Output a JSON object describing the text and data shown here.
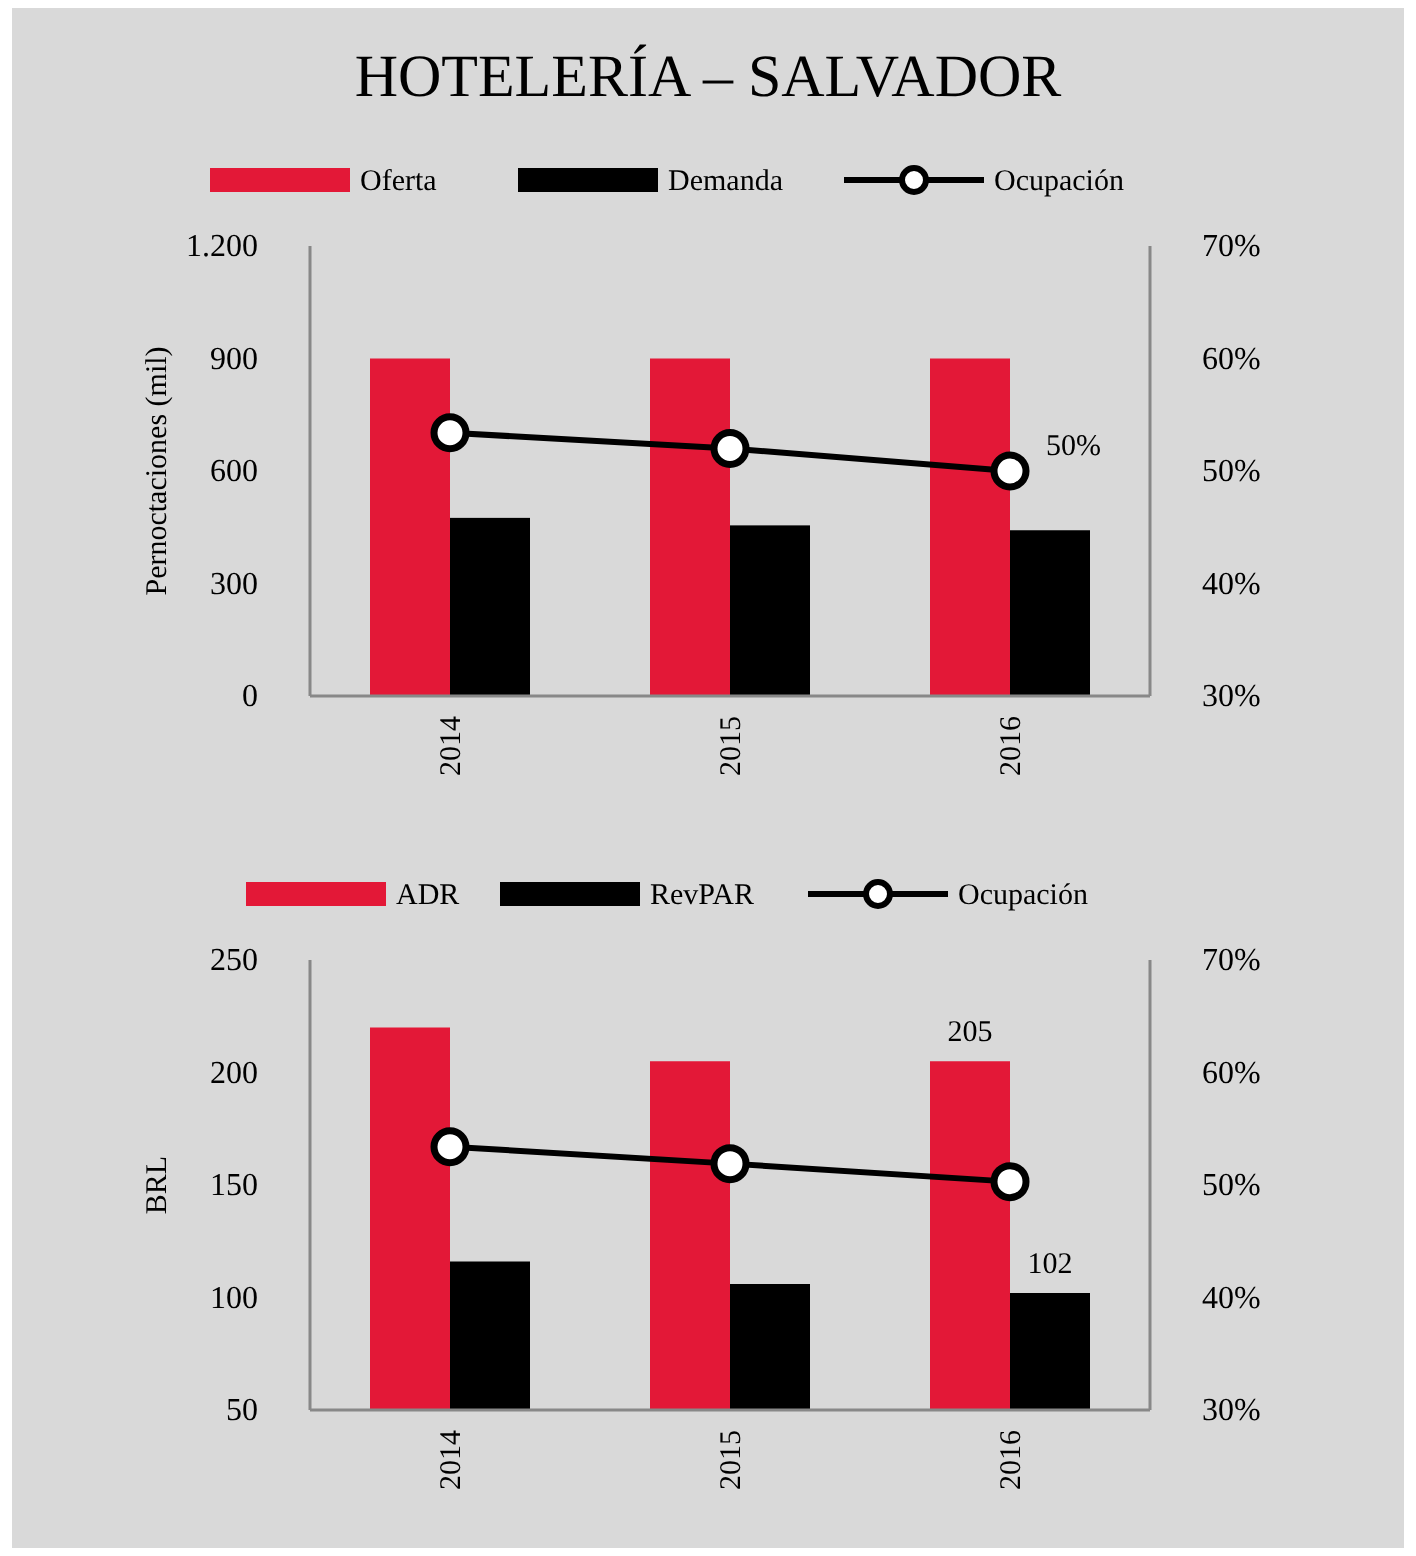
{
  "chart_data": [
    {
      "type": "bar",
      "title": "HOTELERÍA – SALVADOR",
      "categories": [
        "2014",
        "2015",
        "2016"
      ],
      "ylabel": "Pernoctaciones  (mil)",
      "legend": "top",
      "grid": false,
      "marker": "circle",
      "ylim": [
        0,
        1200
      ],
      "yticks": [
        0,
        300,
        600,
        900,
        {
          "value": 1200,
          "label": "1.200"
        }
      ],
      "y2lim": [
        30,
        70
      ],
      "y2ticks": [
        {
          "value": 30,
          "label": "30%"
        },
        {
          "value": 40,
          "label": "40%"
        },
        {
          "value": 50,
          "label": "50%"
        },
        {
          "value": 60,
          "label": "60%"
        },
        {
          "value": 70,
          "label": "70%"
        }
      ],
      "series": [
        {
          "name": "Oferta",
          "color": "#e31837",
          "values": [
            900,
            900,
            900
          ]
        },
        {
          "name": "Demanda",
          "color": "#000000",
          "values": [
            475,
            455,
            442
          ]
        },
        {
          "name": "Ocupación",
          "type": "line",
          "axis": "y2",
          "color": "#000000",
          "values": [
            53.4,
            52.0,
            50
          ],
          "value_labels": [
            null,
            null,
            "50%"
          ]
        }
      ]
    },
    {
      "type": "bar",
      "categories": [
        "2014",
        "2015",
        "2016"
      ],
      "ylabel": "BRL",
      "legend": "top",
      "grid": false,
      "marker": "circle",
      "ylim": [
        50,
        250
      ],
      "yticks": [
        50,
        100,
        150,
        200,
        250
      ],
      "y2lim": [
        30,
        70
      ],
      "y2ticks": [
        {
          "value": 30,
          "label": "30%"
        },
        {
          "value": 40,
          "label": "40%"
        },
        {
          "value": 50,
          "label": "50%"
        },
        {
          "value": 60,
          "label": "60%"
        },
        {
          "value": 70,
          "label": "70%"
        }
      ],
      "series": [
        {
          "name": "ADR",
          "color": "#e31837",
          "values": [
            220,
            205,
            205
          ],
          "value_labels": [
            null,
            null,
            "205"
          ]
        },
        {
          "name": "RevPAR",
          "color": "#000000",
          "values": [
            116,
            106,
            102
          ],
          "value_labels": [
            null,
            null,
            "102"
          ]
        },
        {
          "name": "Ocupación",
          "type": "line",
          "axis": "y2",
          "color": "#000000",
          "values": [
            53.4,
            51.9,
            50.3
          ]
        }
      ]
    }
  ]
}
